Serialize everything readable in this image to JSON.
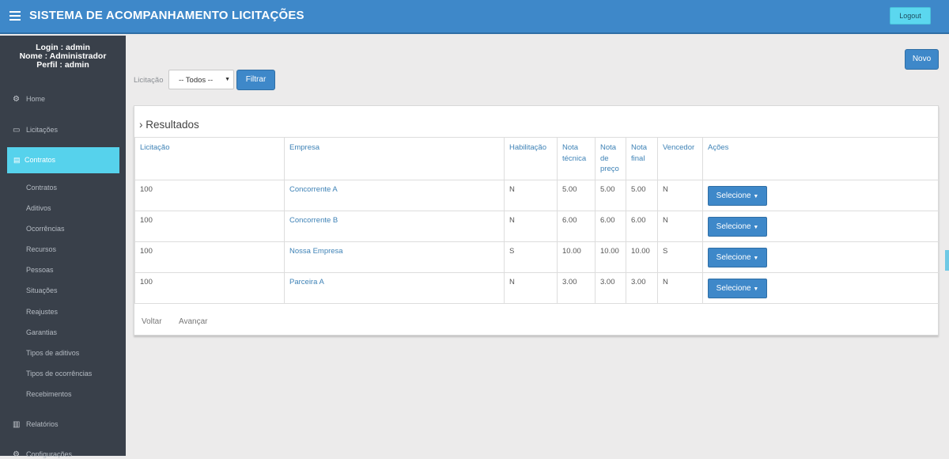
{
  "header": {
    "title": "SISTEMA DE ACOMPANHAMENTO LICITAÇÕES",
    "logout_label": "Logout"
  },
  "sidebar": {
    "login": "Login : admin",
    "nome": "Nome : Administrador",
    "perfil": "Perfil : admin",
    "items": [
      {
        "label": "Home",
        "icon": "dashboard-icon",
        "glyph": "⚙"
      },
      {
        "label": "Licitações",
        "icon": "monitor-icon",
        "glyph": "▭"
      },
      {
        "label": "Contratos",
        "icon": "book-icon",
        "glyph": "▤"
      },
      {
        "label": "Relatórios",
        "icon": "chart-icon",
        "glyph": "▥"
      },
      {
        "label": "Configurações",
        "icon": "cogs-icon",
        "glyph": "⚙"
      }
    ],
    "subitems": [
      "Contratos",
      "Aditivos",
      "Ocorrências",
      "Recursos",
      "Pessoas",
      "Situações",
      "Reajustes",
      "Garantias",
      "Tipos de aditivos",
      "Tipos de ocorrências",
      "Recebimentos"
    ]
  },
  "filter": {
    "label": "Licitação",
    "select_value": "-- Todos --",
    "button_label": "Filtrar"
  },
  "novo_label": "Novo",
  "results": {
    "title": "Resultados",
    "columns": [
      "Licitação",
      "Empresa",
      "Habilitação",
      "Nota técnica",
      "Nota de preço",
      "Nota final",
      "Vencedor",
      "Ações"
    ],
    "rows": [
      {
        "licitacao": "100",
        "empresa": "Concorrente A",
        "habilitacao": "N",
        "nota_tecnica": "5.00",
        "nota_preco": "5.00",
        "nota_final": "5.00",
        "vencedor": "N",
        "acao": "Selecione"
      },
      {
        "licitacao": "100",
        "empresa": "Concorrente B",
        "habilitacao": "N",
        "nota_tecnica": "6.00",
        "nota_preco": "6.00",
        "nota_final": "6.00",
        "vencedor": "N",
        "acao": "Selecione"
      },
      {
        "licitacao": "100",
        "empresa": "Nossa Empresa",
        "habilitacao": "S",
        "nota_tecnica": "10.00",
        "nota_preco": "10.00",
        "nota_final": "10.00",
        "vencedor": "S",
        "acao": "Selecione"
      },
      {
        "licitacao": "100",
        "empresa": "Parceira A",
        "habilitacao": "N",
        "nota_tecnica": "3.00",
        "nota_preco": "3.00",
        "nota_final": "3.00",
        "vencedor": "N",
        "acao": "Selecione"
      }
    ]
  },
  "pager": {
    "prev_label": "Voltar",
    "next_label": "Avançar"
  },
  "colors": {
    "primary": "#3e88c9",
    "sidebar_bg": "#39404a",
    "active_item": "#56d2ec"
  }
}
